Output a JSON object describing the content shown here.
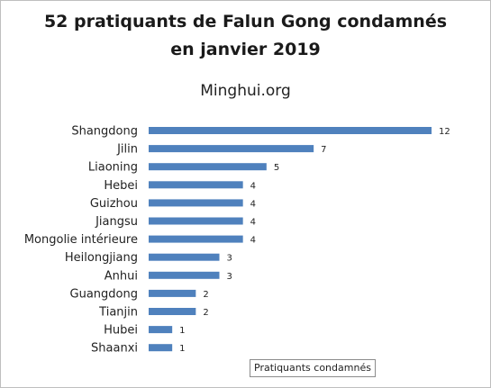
{
  "chart_data": {
    "type": "bar",
    "orientation": "horizontal",
    "title": "52 pratiquants de Falun Gong condamnés\nen janvier 2019",
    "subtitle": "Minghui.org",
    "categories": [
      "Shangdong",
      "Jilin",
      "Liaoning",
      "Hebei",
      "Guizhou",
      "Jiangsu",
      "Mongolie intérieure",
      "Heilongjiang",
      "Anhui",
      "Guangdong",
      "Tianjin",
      "Hubei",
      "Shaanxi"
    ],
    "series": [
      {
        "name": "Pratiquants condamnés",
        "values": [
          12,
          7,
          5,
          4,
          4,
          4,
          4,
          3,
          3,
          2,
          2,
          1,
          1
        ]
      }
    ],
    "xlim": [
      0,
      12
    ],
    "grid": false,
    "legend_position": "bottom-right",
    "data_labels": true,
    "bar_color": "#4f81bd"
  }
}
